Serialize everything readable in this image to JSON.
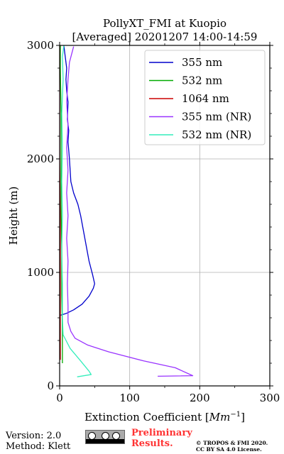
{
  "chart_data": {
    "type": "line",
    "title_line1": "PollyXT_FMI at Kuopio",
    "title_line2": "[Averaged] 20201207 14:00-14:59",
    "xlabel": "Extinction Coefficient [",
    "xlabel_unit": "Mm",
    "xlabel_exp": "−1",
    "xlabel_end": "]",
    "ylabel": "Height (m)",
    "xlim": [
      0,
      300
    ],
    "ylim": [
      0,
      3000
    ],
    "xticks": [
      "0",
      "100",
      "200",
      "300"
    ],
    "yticks": [
      "0",
      "1000",
      "2000",
      "3000"
    ],
    "grid": true,
    "legend_position": "top-right",
    "series": [
      {
        "name": "355 nm",
        "color": "#0000cc",
        "points": [
          [
            0,
            620
          ],
          [
            10,
            640
          ],
          [
            20,
            670
          ],
          [
            32,
            720
          ],
          [
            42,
            790
          ],
          [
            48,
            860
          ],
          [
            50,
            900
          ],
          [
            47,
            980
          ],
          [
            42,
            1100
          ],
          [
            36,
            1300
          ],
          [
            30,
            1500
          ],
          [
            26,
            1600
          ],
          [
            20,
            1700
          ],
          [
            16,
            1800
          ],
          [
            14,
            2000
          ],
          [
            12,
            2150
          ],
          [
            13,
            2250
          ],
          [
            11,
            2350
          ],
          [
            12,
            2500
          ],
          [
            10,
            2600
          ],
          [
            9,
            2700
          ],
          [
            10,
            2800
          ],
          [
            8,
            2900
          ],
          [
            6,
            3000
          ]
        ]
      },
      {
        "name": "532 nm",
        "color": "#00aa00",
        "points": [
          [
            4,
            200
          ],
          [
            4,
            500
          ],
          [
            3,
            800
          ],
          [
            3,
            1200
          ],
          [
            2,
            1600
          ],
          [
            2,
            2000
          ],
          [
            2,
            2400
          ],
          [
            1,
            2800
          ],
          [
            1,
            3000
          ]
        ]
      },
      {
        "name": "1064 nm",
        "color": "#cc0000",
        "points": [
          [
            1,
            230
          ],
          [
            1,
            500
          ],
          [
            1,
            900
          ],
          [
            1,
            1400
          ],
          [
            0,
            2000
          ],
          [
            0,
            2600
          ],
          [
            0,
            3000
          ]
        ]
      },
      {
        "name": "355 nm (NR)",
        "color": "#9933ff",
        "points": [
          [
            140,
            85
          ],
          [
            190,
            90
          ],
          [
            165,
            160
          ],
          [
            120,
            220
          ],
          [
            70,
            300
          ],
          [
            40,
            360
          ],
          [
            22,
            420
          ],
          [
            16,
            480
          ],
          [
            12,
            560
          ],
          [
            12,
            700
          ],
          [
            11,
            900
          ],
          [
            12,
            1100
          ],
          [
            10,
            1300
          ],
          [
            12,
            1500
          ],
          [
            10,
            1700
          ],
          [
            12,
            1900
          ],
          [
            10,
            2100
          ],
          [
            12,
            2300
          ],
          [
            10,
            2500
          ],
          [
            12,
            2700
          ],
          [
            14,
            2850
          ],
          [
            20,
            2990
          ]
        ]
      },
      {
        "name": "532 nm (NR)",
        "color": "#33eebb",
        "points": [
          [
            25,
            80
          ],
          [
            45,
            100
          ],
          [
            42,
            130
          ],
          [
            30,
            220
          ],
          [
            15,
            330
          ],
          [
            5,
            450
          ],
          [
            4,
            600
          ],
          [
            4,
            900
          ],
          [
            3,
            1200
          ],
          [
            4,
            1500
          ],
          [
            3,
            1800
          ],
          [
            4,
            2100
          ],
          [
            3,
            2400
          ],
          [
            5,
            2700
          ],
          [
            4,
            2900
          ],
          [
            6,
            3000
          ]
        ]
      }
    ]
  },
  "footer": {
    "version": "Version: 2.0",
    "method": "Method: Klett",
    "preliminary_line1": "Preliminary",
    "preliminary_line2": "Results.",
    "copyright_line1": "© TROPOS & FMI 2020.",
    "copyright_line2": "CC BY SA 4.0 License."
  }
}
